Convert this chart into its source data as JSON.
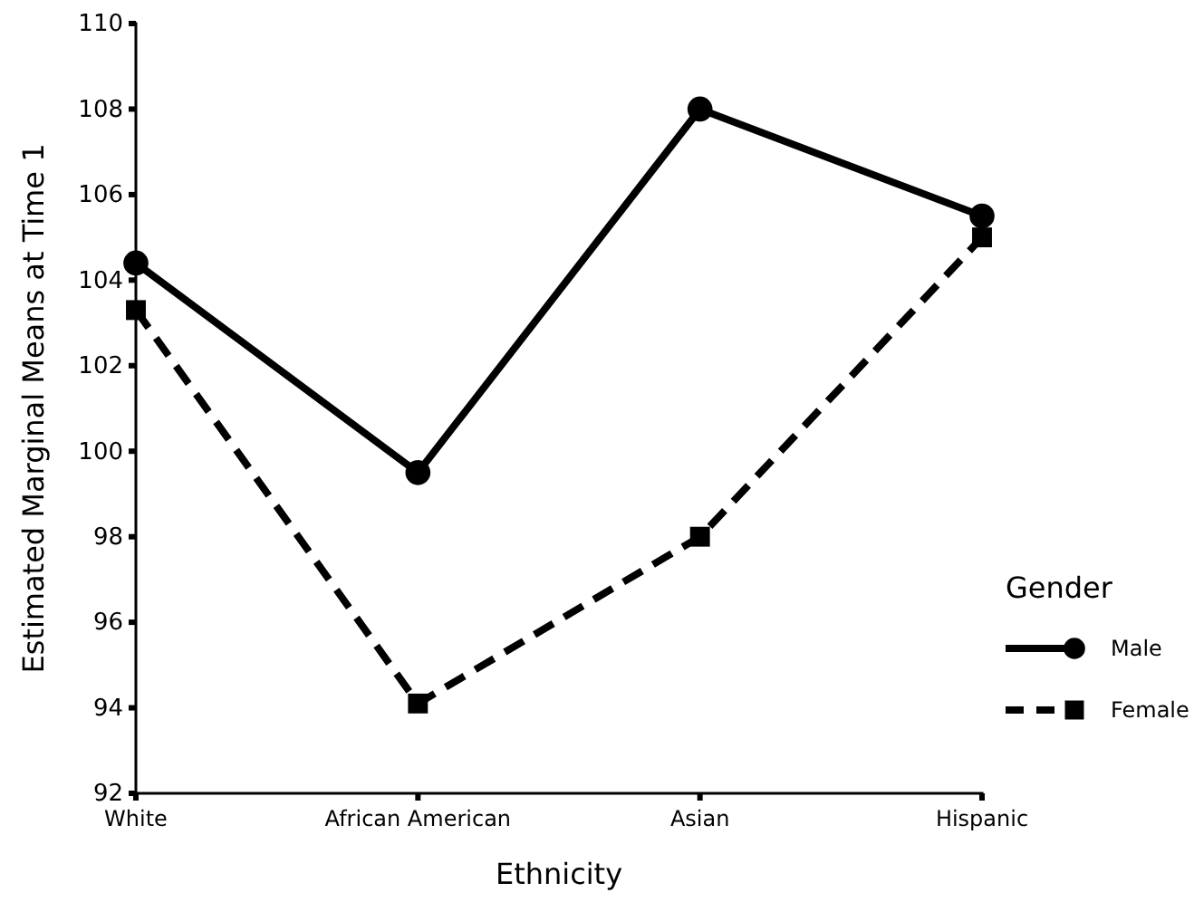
{
  "chart_data": {
    "type": "line",
    "xlabel": "Ethnicity",
    "ylabel": "Estimated Marginal Means at Time 1",
    "legend_title": "Gender",
    "legend": "right",
    "categories": [
      "White",
      "African American",
      "Asian",
      "Hispanic"
    ],
    "ylim": [
      92,
      110
    ],
    "yticks": [
      92,
      94,
      96,
      98,
      100,
      102,
      104,
      106,
      108,
      110
    ],
    "grid": false,
    "series": [
      {
        "name": "Male",
        "color": "#000000",
        "values": [
          104.4,
          99.5,
          108.0,
          105.5
        ],
        "marker": "circle",
        "line_style": "solid"
      },
      {
        "name": "Female",
        "color": "#000000",
        "values": [
          103.3,
          94.1,
          98.0,
          105.0
        ],
        "marker": "square",
        "line_style": "dashed"
      }
    ]
  }
}
